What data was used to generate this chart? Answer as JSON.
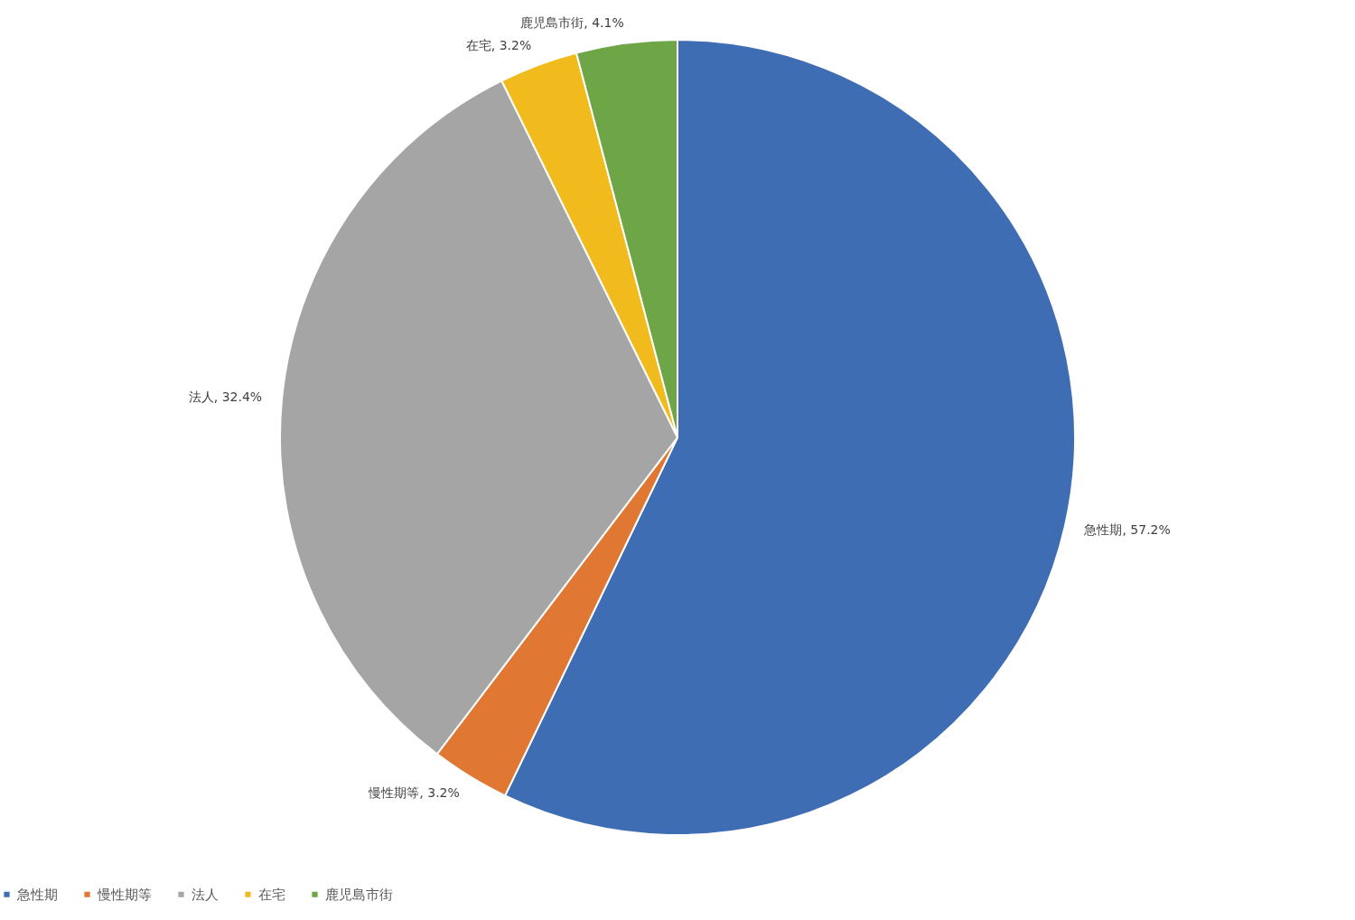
{
  "chart_data": {
    "type": "pie",
    "categories": [
      "急性期",
      "慢性期等",
      "法人",
      "在宅",
      "鹿児島市街"
    ],
    "values": [
      57.2,
      3.2,
      32.4,
      3.2,
      4.1
    ],
    "colors": [
      "#3f6db3",
      "#e07834",
      "#a5a5a5",
      "#f2bb1d",
      "#6ea647"
    ],
    "value_labels": [
      "急性期, 57.2%",
      "慢性期等, 3.2%",
      "法人, 32.4%",
      "在宅, 3.2%",
      "鹿児島市街, 4.1%"
    ],
    "legend": "bottom"
  }
}
